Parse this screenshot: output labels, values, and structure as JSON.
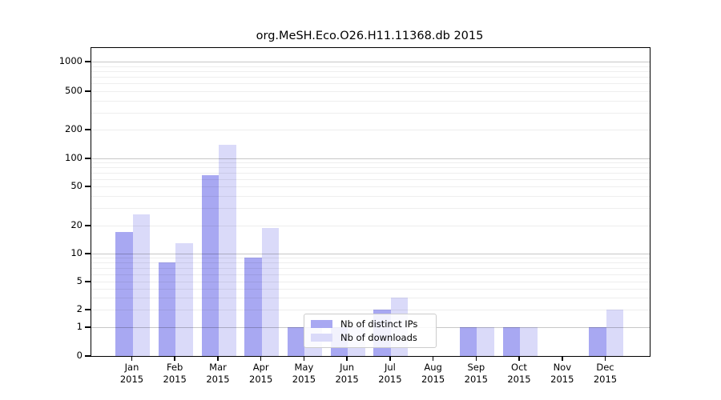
{
  "title": "org.MeSH.Eco.O26.H11.11368.db 2015",
  "chart_data": {
    "type": "bar",
    "categories": [
      "Jan 2015",
      "Feb 2015",
      "Mar 2015",
      "Apr 2015",
      "May 2015",
      "Jun 2015",
      "Jul 2015",
      "Aug 2015",
      "Sep 2015",
      "Oct 2015",
      "Nov 2015",
      "Dec 2015"
    ],
    "series": [
      {
        "name": "Nb of distinct IPs",
        "color": "#a8a8f2",
        "values": [
          17,
          8,
          66,
          9,
          1,
          1,
          2,
          0,
          1,
          1,
          0,
          1
        ]
      },
      {
        "name": "Nb of downloads",
        "color": "#dadaf9",
        "values": [
          26,
          13,
          140,
          19,
          1,
          1,
          3,
          0,
          1,
          1,
          0,
          2
        ]
      }
    ],
    "title": "org.MeSH.Eco.O26.H11.11368.db 2015",
    "xlabel": "",
    "ylabel": "",
    "yscale": "symlog",
    "ylim": [
      0,
      1300
    ],
    "yticks": [
      0,
      1,
      2,
      5,
      10,
      20,
      50,
      100,
      200,
      500,
      1000
    ],
    "grid": "horizontal",
    "legend_position": "lower center"
  },
  "legend": {
    "items": [
      {
        "label": "Nb of distinct IPs"
      },
      {
        "label": "Nb of downloads"
      }
    ]
  }
}
